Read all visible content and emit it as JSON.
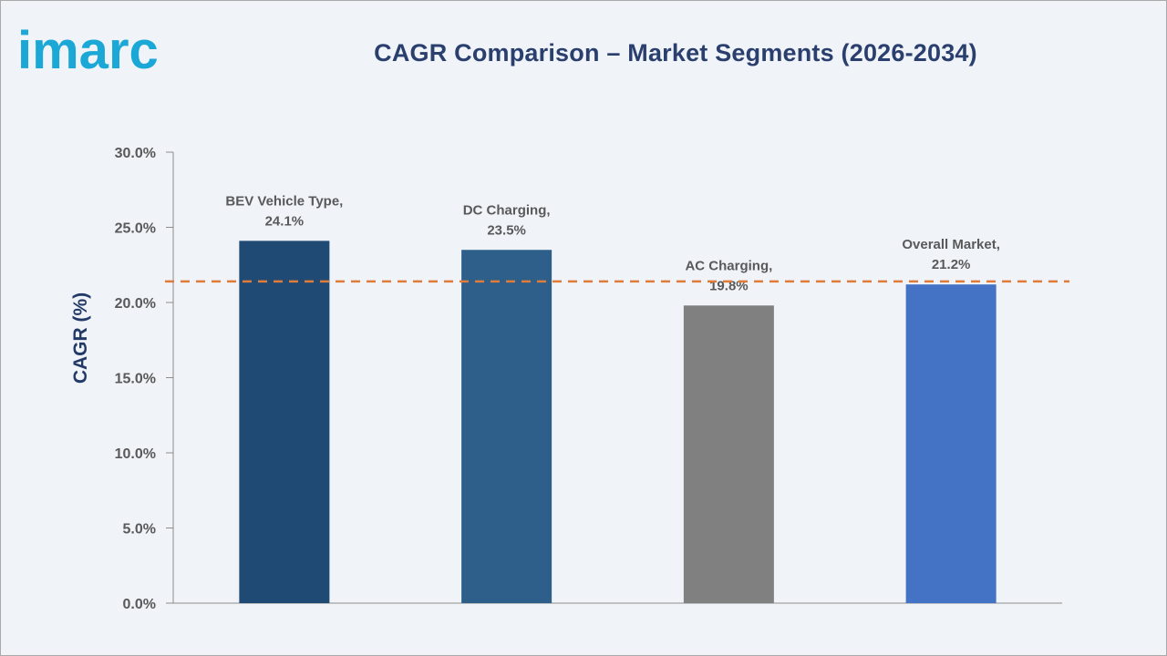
{
  "brand": {
    "logo_text": "imarc",
    "logo_color": "#1ba8d6"
  },
  "chart_data": {
    "type": "bar",
    "title": "CAGR Comparison – Market Segments (2026-2034)",
    "xlabel": "",
    "ylabel": "CAGR (%)",
    "ylim": [
      0,
      30
    ],
    "yticks": [
      "0.0%",
      "5.0%",
      "10.0%",
      "15.0%",
      "20.0%",
      "25.0%",
      "30.0%"
    ],
    "ytick_values": [
      0,
      5,
      10,
      15,
      20,
      25,
      30
    ],
    "categories": [
      "BEV Vehicle Type",
      "DC Charging",
      "AC Charging",
      "Overall Market"
    ],
    "values": [
      24.1,
      23.5,
      19.8,
      21.2
    ],
    "data_labels": [
      [
        "BEV Vehicle Type,",
        "24.1%"
      ],
      [
        "DC Charging,",
        "23.5%"
      ],
      [
        "AC Charging,",
        "19.8%"
      ],
      [
        "Overall Market,",
        "21.2%"
      ]
    ],
    "bar_colors": [
      "#1f4a73",
      "#2d5f8a",
      "#808080",
      "#4472c4"
    ],
    "reference_line": {
      "value": 21.4,
      "style": "dashed",
      "color": "#e07b39"
    },
    "grid": false,
    "legend": "none"
  }
}
